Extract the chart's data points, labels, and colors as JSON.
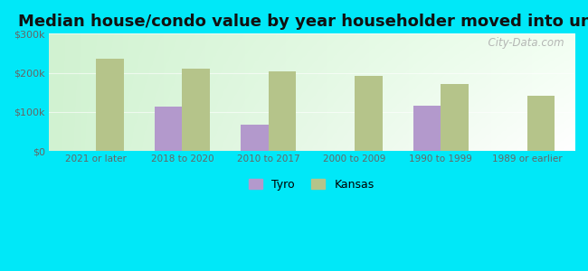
{
  "title": "Median house/condo value by year householder moved into unit",
  "categories": [
    "2021 or later",
    "2018 to 2020",
    "2010 to 2017",
    "2000 to 2009",
    "1990 to 1999",
    "1989 or earlier"
  ],
  "tyro_values": [
    null,
    113000,
    68000,
    null,
    116000,
    null
  ],
  "kansas_values": [
    235000,
    210000,
    203000,
    193000,
    172000,
    141000
  ],
  "tyro_color": "#b399cc",
  "kansas_color": "#b5c48a",
  "background_outer": "#00e8f8",
  "background_inner": "#d8f0d8",
  "ylim": [
    0,
    300000
  ],
  "yticks": [
    0,
    100000,
    200000,
    300000
  ],
  "ytick_labels": [
    "$0",
    "$100k",
    "$200k",
    "$300k"
  ],
  "title_fontsize": 13,
  "bar_width": 0.32,
  "watermark": "  City-Data.com",
  "legend_tyro": "Tyro",
  "legend_kansas": "Kansas"
}
